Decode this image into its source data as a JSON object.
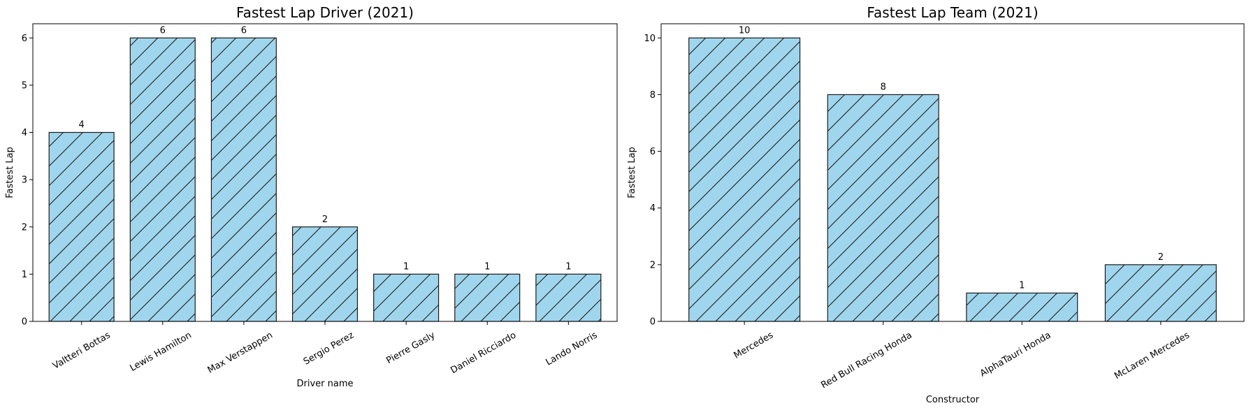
{
  "chart_data": [
    {
      "type": "bar",
      "title": "Fastest Lap Driver (2021)",
      "xlabel": "Driver name",
      "ylabel": "Fastest Lap",
      "categories": [
        "Valtteri Bottas",
        "Lewis Hamilton",
        "Max Verstappen",
        "Sergio Perez",
        "Pierre Gasly",
        "Daniel Ricciardo",
        "Lando Norris"
      ],
      "values": [
        4,
        6,
        6,
        2,
        1,
        1,
        1
      ],
      "ylim": [
        0,
        6.3
      ],
      "yticks": [
        0,
        1,
        2,
        3,
        4,
        5,
        6
      ],
      "bar_color": "#a0d6ed",
      "edge_color": "#1a1a1a",
      "hatch": "diagonal",
      "grid": false,
      "data_labels": true
    },
    {
      "type": "bar",
      "title": "Fastest Lap Team (2021)",
      "xlabel": "Constructor",
      "ylabel": "Fastest Lap",
      "categories": [
        "Mercedes",
        "Red Bull Racing Honda",
        "AlphaTauri Honda",
        "McLaren Mercedes"
      ],
      "values": [
        10,
        8,
        1,
        2
      ],
      "ylim": [
        0,
        10.5
      ],
      "yticks": [
        0,
        2,
        4,
        6,
        8,
        10
      ],
      "bar_color": "#a0d6ed",
      "edge_color": "#1a1a1a",
      "hatch": "diagonal",
      "grid": false,
      "data_labels": true
    }
  ]
}
